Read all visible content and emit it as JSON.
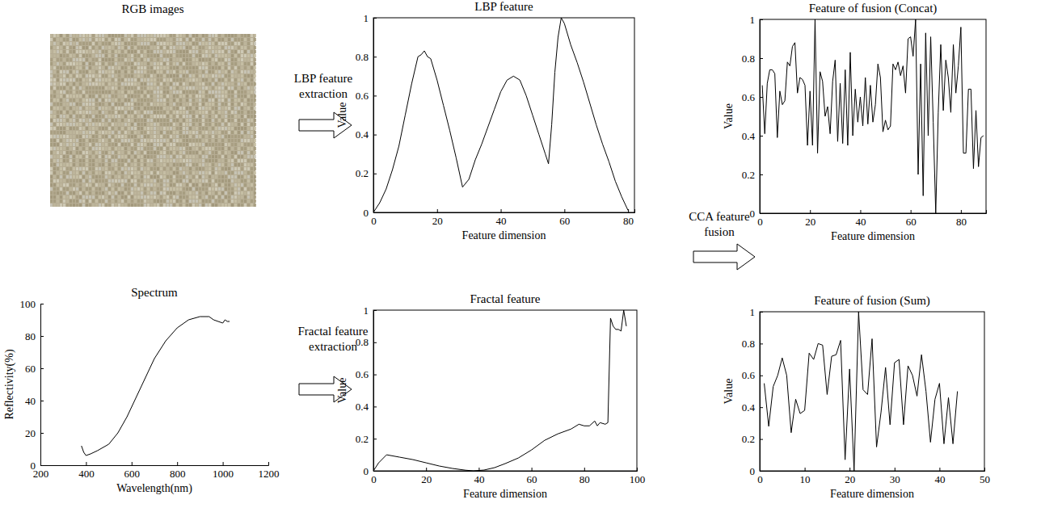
{
  "chart_data": [
    {
      "type": "line",
      "title": "Spectrum",
      "x_label": "Wavelength(nm)",
      "y_label": "Reflectivity(%)",
      "color": "#000000",
      "x": [
        380,
        390,
        400,
        420,
        450,
        500,
        540,
        580,
        620,
        660,
        700,
        750,
        800,
        850,
        900,
        940,
        960,
        980,
        1000,
        1010,
        1020,
        1030
      ],
      "values": [
        12,
        8,
        6,
        7,
        9,
        13,
        20,
        30,
        42,
        54,
        66,
        77,
        85,
        90,
        92,
        92,
        90,
        89,
        88,
        90,
        89,
        89
      ],
      "xlim": [
        200,
        1200
      ],
      "xticks": [
        200,
        400,
        600,
        800,
        1000,
        1200
      ],
      "ylim": [
        0,
        100
      ],
      "yticks": [
        0,
        20,
        40,
        60,
        80,
        100
      ]
    },
    {
      "type": "line",
      "title": "LBP feature",
      "x_label": "Feature dimension",
      "y_label": "Value",
      "color": "#000000",
      "x": [
        0,
        2,
        4,
        6,
        8,
        10,
        12,
        14,
        15,
        16,
        17,
        18,
        20,
        22,
        24,
        26,
        28,
        30,
        32,
        34,
        36,
        38,
        40,
        42,
        44,
        46,
        48,
        50,
        52,
        54,
        55,
        56,
        57,
        58,
        59,
        60,
        62,
        64,
        66,
        68,
        70,
        72,
        74,
        76,
        78,
        80
      ],
      "values": [
        0,
        0.05,
        0.12,
        0.22,
        0.34,
        0.5,
        0.66,
        0.8,
        0.81,
        0.83,
        0.8,
        0.79,
        0.68,
        0.55,
        0.42,
        0.28,
        0.13,
        0.17,
        0.27,
        0.35,
        0.44,
        0.53,
        0.62,
        0.68,
        0.7,
        0.68,
        0.6,
        0.5,
        0.4,
        0.3,
        0.25,
        0.45,
        0.72,
        0.9,
        1.0,
        0.97,
        0.86,
        0.77,
        0.67,
        0.56,
        0.45,
        0.35,
        0.26,
        0.16,
        0.08,
        0.01
      ],
      "xlim": [
        0,
        82
      ],
      "xticks": [
        0,
        20,
        40,
        60,
        80
      ],
      "ylim": [
        0,
        1
      ],
      "yticks": [
        0,
        0.2,
        0.4,
        0.6,
        0.8,
        1
      ]
    },
    {
      "type": "line",
      "title": "Fractal feature",
      "x_label": "Feature dimension",
      "y_label": "Value",
      "color": "#000000",
      "x": [
        0,
        2,
        5,
        10,
        15,
        20,
        25,
        30,
        35,
        38,
        42,
        46,
        50,
        55,
        60,
        65,
        70,
        75,
        78,
        80,
        82,
        84,
        85,
        86,
        88,
        89,
        90,
        91,
        92,
        93,
        94,
        95,
        96
      ],
      "values": [
        0,
        0.05,
        0.1,
        0.085,
        0.07,
        0.05,
        0.03,
        0.015,
        0.004,
        0,
        0.005,
        0.02,
        0.045,
        0.08,
        0.13,
        0.19,
        0.23,
        0.26,
        0.29,
        0.28,
        0.28,
        0.31,
        0.28,
        0.3,
        0.29,
        0.3,
        0.95,
        0.9,
        0.88,
        0.88,
        0.87,
        1.0,
        0.9
      ],
      "xlim": [
        0,
        100
      ],
      "xticks": [
        0,
        20,
        40,
        60,
        80,
        100
      ],
      "ylim": [
        0,
        1
      ],
      "yticks": [
        0,
        0.2,
        0.4,
        0.6,
        0.8,
        1
      ]
    },
    {
      "type": "line",
      "title": "Feature of fusion (Concat)",
      "x_label": "Feature dimension",
      "y_label": "Value",
      "color": "#000000",
      "x": [
        1,
        2,
        3,
        4,
        5,
        6,
        7,
        8,
        9,
        10,
        11,
        12,
        13,
        14,
        15,
        16,
        17,
        18,
        19,
        20,
        21,
        22,
        23,
        24,
        25,
        26,
        27,
        28,
        29,
        30,
        31,
        32,
        33,
        34,
        35,
        36,
        37,
        38,
        39,
        40,
        41,
        42,
        43,
        44,
        45,
        46,
        47,
        48,
        49,
        50,
        51,
        52,
        53,
        54,
        55,
        56,
        57,
        58,
        59,
        60,
        61,
        62,
        63,
        64,
        65,
        66,
        67,
        68,
        69,
        70,
        71,
        72,
        73,
        74,
        75,
        76,
        77,
        78,
        79,
        80,
        81,
        82,
        83,
        84,
        85,
        86,
        87,
        88,
        89
      ],
      "values": [
        0.66,
        0.41,
        0.67,
        0.74,
        0.74,
        0.72,
        0.39,
        0.63,
        0.56,
        0.58,
        0.78,
        0.76,
        0.86,
        0.88,
        0.62,
        0.7,
        0.69,
        0.66,
        0.35,
        0.63,
        0.35,
        1.0,
        0.31,
        0.73,
        0.68,
        0.5,
        0.55,
        0.41,
        0.68,
        0.79,
        0.37,
        0.67,
        0.36,
        0.74,
        0.35,
        0.83,
        0.4,
        0.64,
        0.47,
        0.6,
        0.45,
        0.7,
        0.46,
        0.66,
        0.47,
        0.56,
        0.77,
        0.7,
        0.42,
        0.48,
        0.43,
        0.45,
        0.77,
        0.74,
        0.78,
        0.71,
        0.76,
        0.62,
        0.9,
        0.91,
        0.81,
        1.0,
        0.2,
        0.77,
        0.09,
        0.93,
        0.4,
        0.91,
        0.47,
        0,
        0.52,
        0.87,
        0.53,
        0.79,
        0.7,
        0.52,
        0.87,
        0.62,
        0.76,
        0.96,
        0.31,
        0.31,
        0.64,
        0.64,
        0.23,
        0.53,
        0.24,
        0.39,
        0.4
      ],
      "xlim": [
        0,
        90
      ],
      "xticks": [
        0,
        20,
        40,
        60,
        80
      ],
      "ylim": [
        0,
        1
      ],
      "yticks": [
        0,
        0.2,
        0.4,
        0.6,
        0.8,
        1
      ]
    },
    {
      "type": "line",
      "title": "Feature of fusion (Sum)",
      "x_label": "Feature dimension",
      "y_label": "Value",
      "color": "#000000",
      "x": [
        1,
        2,
        3,
        4,
        5,
        6,
        7,
        8,
        9,
        10,
        11,
        12,
        13,
        14,
        15,
        16,
        17,
        18,
        19,
        20,
        21,
        22,
        23,
        24,
        25,
        26,
        27,
        28,
        29,
        30,
        31,
        32,
        33,
        34,
        35,
        36,
        37,
        38,
        39,
        40,
        41,
        42,
        43,
        44
      ],
      "values": [
        0.55,
        0.28,
        0.53,
        0.6,
        0.71,
        0.6,
        0.24,
        0.45,
        0.36,
        0.38,
        0.74,
        0.7,
        0.8,
        0.79,
        0.48,
        0.72,
        0.73,
        0.82,
        0.07,
        0.64,
        0,
        1.0,
        0.51,
        0.48,
        0.83,
        0.15,
        0.37,
        0.65,
        0.29,
        0.68,
        0.7,
        0.29,
        0.66,
        0.6,
        0.47,
        0.73,
        0.5,
        0.18,
        0.45,
        0.55,
        0.17,
        0.46,
        0.17,
        0.5
      ],
      "xlim": [
        0,
        50
      ],
      "xticks": [
        0,
        10,
        20,
        30,
        40,
        50
      ],
      "ylim": [
        0,
        1
      ],
      "yticks": [
        0,
        0.2,
        0.4,
        0.6,
        0.8,
        1
      ]
    }
  ],
  "image": {
    "title": "RGB images"
  },
  "arrows": [
    {
      "label": "LBP feature extraction"
    },
    {
      "label": "Fractal feature extraction"
    },
    {
      "label": "CCA feature fusion"
    }
  ]
}
